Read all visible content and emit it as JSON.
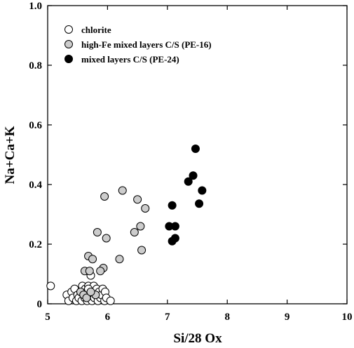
{
  "chart_data": {
    "type": "scatter",
    "title": "",
    "xlabel": "Si/28 Ox",
    "ylabel": "Na+Ca+K",
    "xlim": [
      5,
      10
    ],
    "ylim": [
      0,
      1.0
    ],
    "x_ticks": [
      {
        "value": 5,
        "label": "5"
      },
      {
        "value": 6,
        "label": "6"
      },
      {
        "value": 7,
        "label": "7"
      },
      {
        "value": 8,
        "label": "8"
      },
      {
        "value": 9,
        "label": "9"
      },
      {
        "value": 10,
        "label": "10"
      }
    ],
    "y_ticks": [
      {
        "value": 0,
        "label": "0"
      },
      {
        "value": 0.2,
        "label": "0.2"
      },
      {
        "value": 0.4,
        "label": "0.4"
      },
      {
        "value": 0.6,
        "label": "0.6"
      },
      {
        "value": 0.8,
        "label": "0.8"
      },
      {
        "value": 1.0,
        "label": "1.0"
      }
    ],
    "grid": false,
    "legend_position": "top-left",
    "series": [
      {
        "name": "chlorite",
        "fill": "#ffffff",
        "points": [
          [
            5.05,
            0.06
          ],
          [
            5.32,
            0.03
          ],
          [
            5.35,
            0.01
          ],
          [
            5.4,
            0.04
          ],
          [
            5.42,
            0.02
          ],
          [
            5.45,
            0.05
          ],
          [
            5.48,
            0.01
          ],
          [
            5.5,
            0.03
          ],
          [
            5.52,
            0.02
          ],
          [
            5.55,
            0.04
          ],
          [
            5.57,
            0.01
          ],
          [
            5.58,
            0.06
          ],
          [
            5.6,
            0.03
          ],
          [
            5.62,
            0.02
          ],
          [
            5.63,
            0.05
          ],
          [
            5.65,
            0.04
          ],
          [
            5.66,
            0.01
          ],
          [
            5.68,
            0.06
          ],
          [
            5.7,
            0.03
          ],
          [
            5.71,
            0.02
          ],
          [
            5.72,
            0.05
          ],
          [
            5.74,
            0.01
          ],
          [
            5.75,
            0.04
          ],
          [
            5.77,
            0.06
          ],
          [
            5.78,
            0.02
          ],
          [
            5.8,
            0.03
          ],
          [
            5.82,
            0.05
          ],
          [
            5.84,
            0.01
          ],
          [
            5.86,
            0.04
          ],
          [
            5.88,
            0.02
          ],
          [
            5.9,
            0.03
          ],
          [
            5.92,
            0.05
          ],
          [
            5.95,
            0.01
          ],
          [
            5.96,
            0.04
          ],
          [
            5.98,
            0.02
          ],
          [
            6.05,
            0.01
          ],
          [
            5.72,
            0.095
          ],
          [
            5.68,
            0.05
          ]
        ]
      },
      {
        "name": "high-Fe mixed layers C/S (PE-16)",
        "fill": "#cccccc",
        "points": [
          [
            5.95,
            0.36
          ],
          [
            6.25,
            0.38
          ],
          [
            6.5,
            0.35
          ],
          [
            6.63,
            0.32
          ],
          [
            5.83,
            0.24
          ],
          [
            5.98,
            0.22
          ],
          [
            6.45,
            0.24
          ],
          [
            6.55,
            0.26
          ],
          [
            6.57,
            0.18
          ],
          [
            6.2,
            0.15
          ],
          [
            5.68,
            0.16
          ],
          [
            5.75,
            0.15
          ],
          [
            5.93,
            0.12
          ],
          [
            5.88,
            0.11
          ],
          [
            5.62,
            0.11
          ],
          [
            5.7,
            0.11
          ],
          [
            5.55,
            0.04
          ],
          [
            5.6,
            0.03
          ],
          [
            5.65,
            0.02
          ],
          [
            5.8,
            0.03
          ],
          [
            5.72,
            0.04
          ]
        ]
      },
      {
        "name": "mixed layers C/S (PE-24)",
        "fill": "#000000",
        "points": [
          [
            7.47,
            0.52
          ],
          [
            7.43,
            0.43
          ],
          [
            7.35,
            0.41
          ],
          [
            7.58,
            0.38
          ],
          [
            7.53,
            0.336
          ],
          [
            7.08,
            0.33
          ],
          [
            7.03,
            0.26
          ],
          [
            7.13,
            0.26
          ],
          [
            7.08,
            0.21
          ],
          [
            7.13,
            0.22
          ]
        ]
      }
    ]
  }
}
